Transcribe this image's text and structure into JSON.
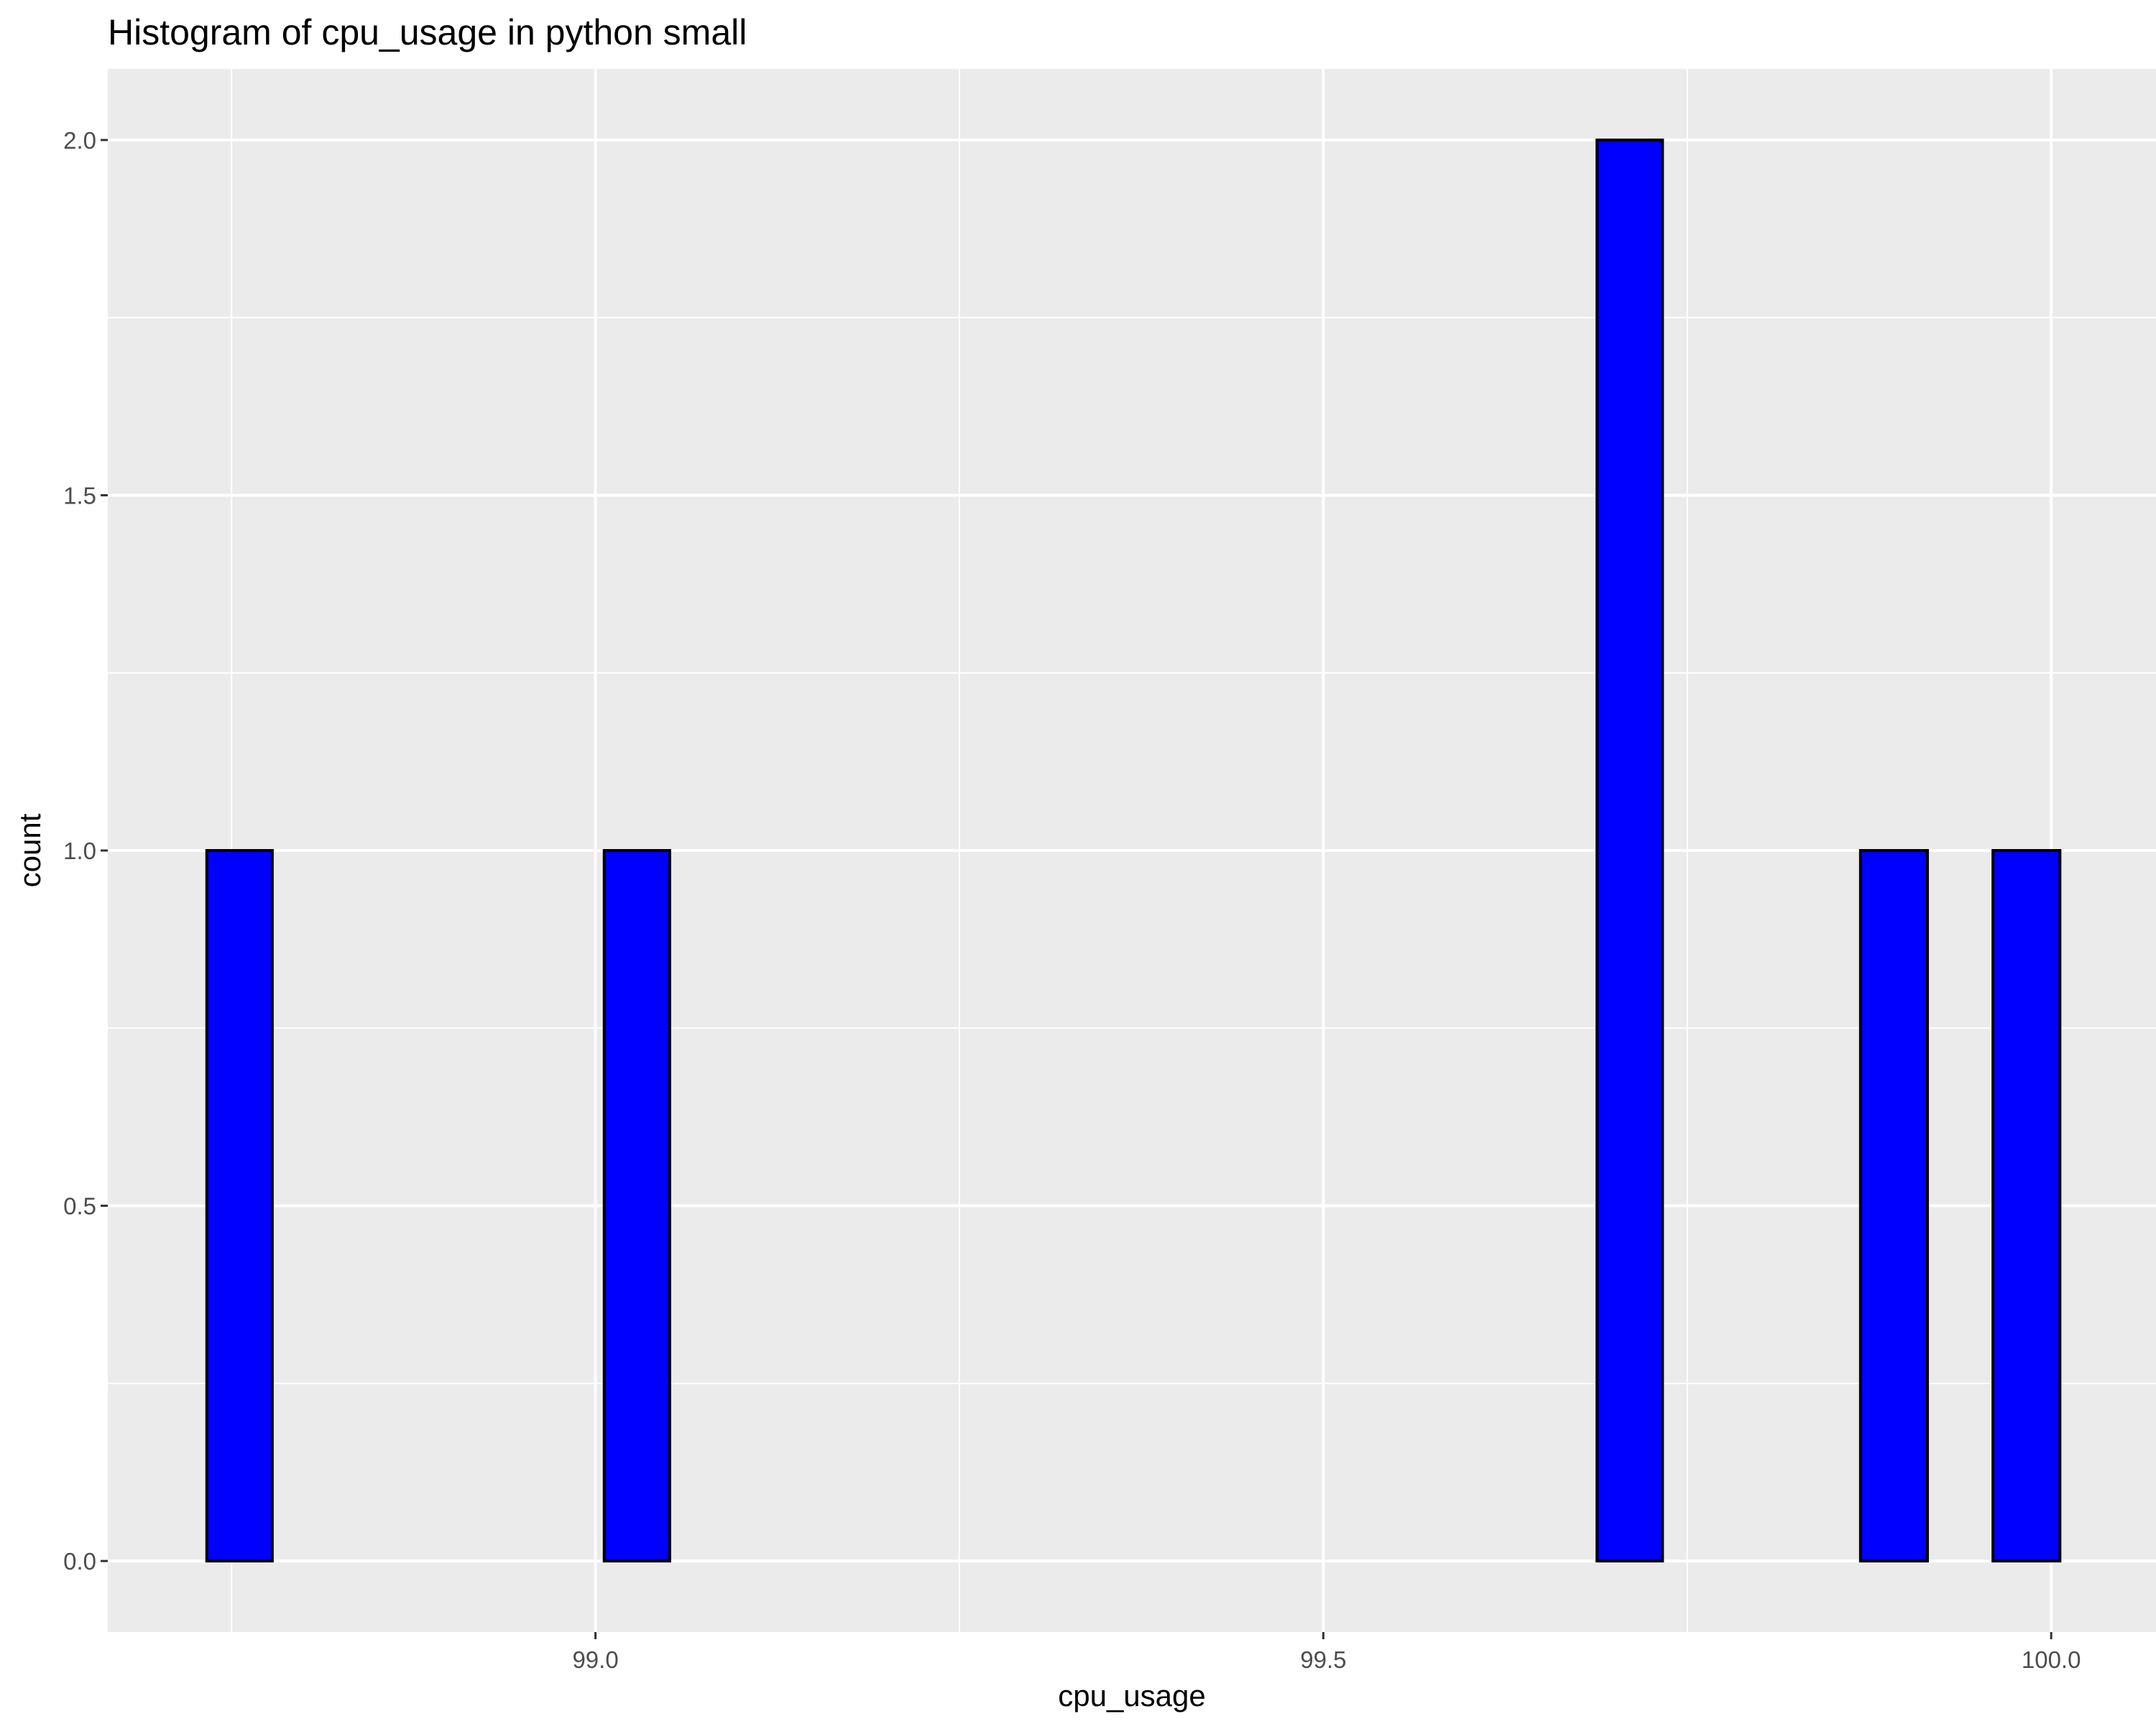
{
  "chart_data": {
    "type": "bar",
    "title": "Histogram of cpu_usage in python small",
    "xlabel": "cpu_usage",
    "ylabel": "count",
    "xlim": [
      98.665,
      100.072
    ],
    "ylim": [
      -0.1,
      2.1
    ],
    "x_ticks": [
      99.0,
      99.5,
      100.0
    ],
    "x_tick_labels": [
      "99.0",
      "99.5",
      "100.0"
    ],
    "y_ticks": [
      0,
      0.5,
      1,
      1.5,
      2
    ],
    "y_tick_labels": [
      "0.0",
      "0.5",
      "1.0",
      "1.5",
      "2.0"
    ],
    "bin_width": 0.0455,
    "bins": [
      {
        "x_start": 98.733,
        "x_end": 98.778,
        "count": 1
      },
      {
        "x_start": 98.778,
        "x_end": 98.824,
        "count": 0
      },
      {
        "x_start": 98.824,
        "x_end": 98.869,
        "count": 0
      },
      {
        "x_start": 98.869,
        "x_end": 98.915,
        "count": 0
      },
      {
        "x_start": 98.915,
        "x_end": 98.96,
        "count": 0
      },
      {
        "x_start": 98.96,
        "x_end": 99.006,
        "count": 0
      },
      {
        "x_start": 99.006,
        "x_end": 99.051,
        "count": 1
      },
      {
        "x_start": 99.051,
        "x_end": 99.097,
        "count": 0
      },
      {
        "x_start": 99.097,
        "x_end": 99.142,
        "count": 0
      },
      {
        "x_start": 99.142,
        "x_end": 99.188,
        "count": 0
      },
      {
        "x_start": 99.188,
        "x_end": 99.233,
        "count": 0
      },
      {
        "x_start": 99.233,
        "x_end": 99.279,
        "count": 0
      },
      {
        "x_start": 99.279,
        "x_end": 99.324,
        "count": 0
      },
      {
        "x_start": 99.324,
        "x_end": 99.369,
        "count": 0
      },
      {
        "x_start": 99.369,
        "x_end": 99.415,
        "count": 0
      },
      {
        "x_start": 99.415,
        "x_end": 99.46,
        "count": 0
      },
      {
        "x_start": 99.46,
        "x_end": 99.506,
        "count": 0
      },
      {
        "x_start": 99.506,
        "x_end": 99.551,
        "count": 0
      },
      {
        "x_start": 99.551,
        "x_end": 99.597,
        "count": 0
      },
      {
        "x_start": 99.597,
        "x_end": 99.642,
        "count": 0
      },
      {
        "x_start": 99.642,
        "x_end": 99.688,
        "count": 0
      },
      {
        "x_start": 99.688,
        "x_end": 99.733,
        "count": 2
      },
      {
        "x_start": 99.733,
        "x_end": 99.778,
        "count": 0
      },
      {
        "x_start": 99.778,
        "x_end": 99.824,
        "count": 0
      },
      {
        "x_start": 99.824,
        "x_end": 99.869,
        "count": 0
      },
      {
        "x_start": 99.869,
        "x_end": 99.915,
        "count": 1
      },
      {
        "x_start": 99.915,
        "x_end": 99.96,
        "count": 0
      },
      {
        "x_start": 99.96,
        "x_end": 100.006,
        "count": 1
      }
    ],
    "bar_fill": "#0000ff",
    "bar_outline": "#000000",
    "panel_background": "#ebebeb",
    "grid_color": "#ffffff",
    "grid": true,
    "legend": "none"
  }
}
